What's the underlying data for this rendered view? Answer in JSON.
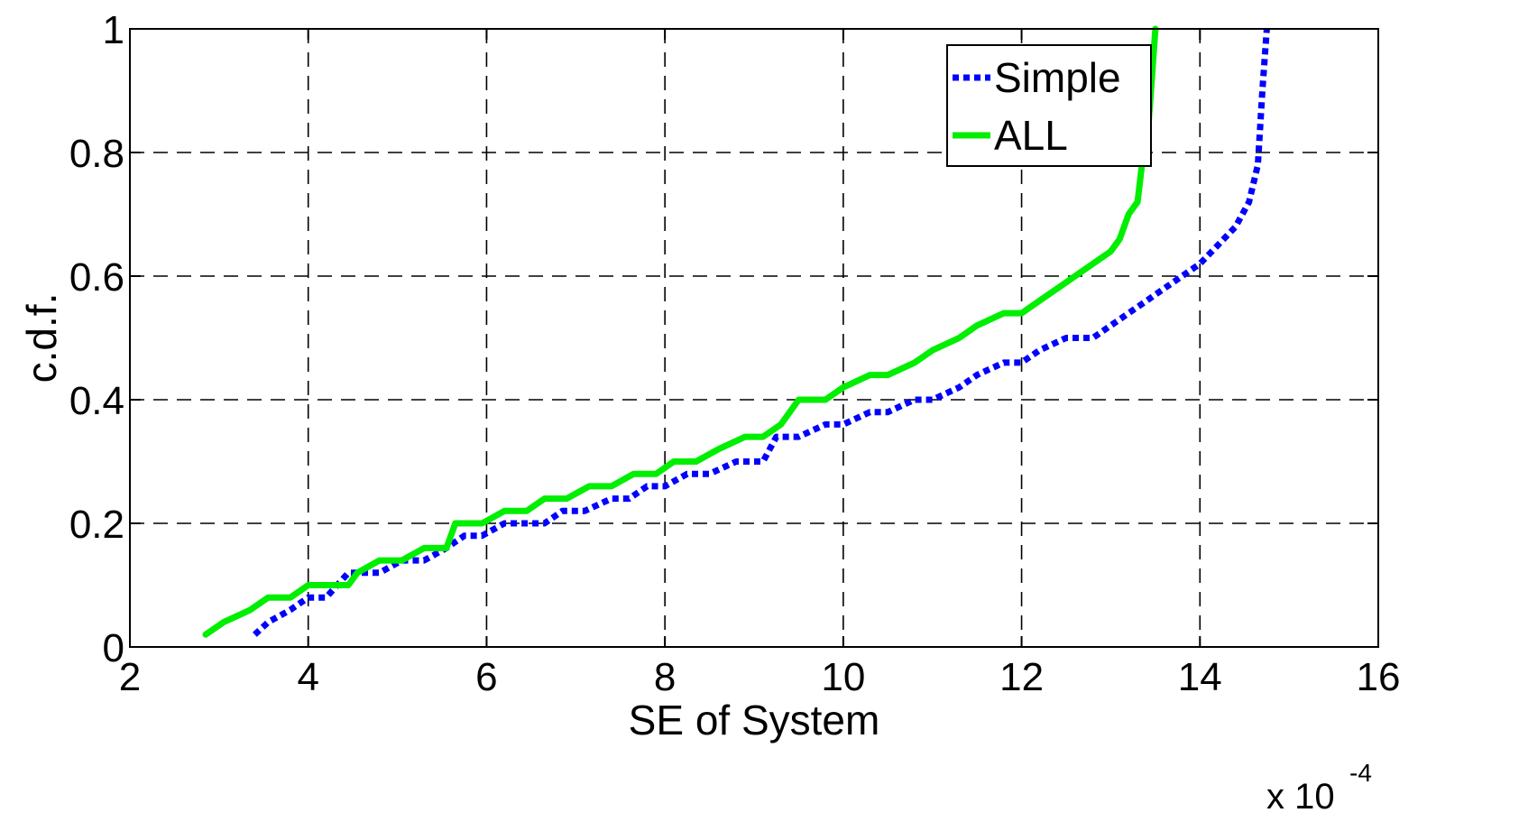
{
  "chart_data": {
    "type": "line",
    "xlabel": "SE of System",
    "ylabel": "c.d.f.",
    "x_scale_base": "x 10",
    "x_scale_exponent": "-4",
    "xlim": [
      2,
      16
    ],
    "ylim": [
      0,
      1
    ],
    "xticks": [
      "2",
      "4",
      "6",
      "8",
      "10",
      "12",
      "14",
      "16"
    ],
    "yticks": [
      "0",
      "0.2",
      "0.4",
      "0.6",
      "0.8",
      "1"
    ],
    "grid": true,
    "legend_position": "top-right",
    "series": [
      {
        "name": "Simple",
        "color": "#0000ff",
        "style": "dotted",
        "x": [
          3.4,
          3.55,
          3.8,
          4.0,
          4.2,
          4.45,
          4.55,
          4.8,
          5.05,
          5.3,
          5.55,
          5.75,
          5.95,
          6.2,
          6.4,
          6.65,
          6.85,
          7.1,
          7.4,
          7.6,
          7.8,
          8.0,
          8.25,
          8.5,
          8.8,
          9.1,
          9.25,
          9.5,
          9.8,
          10.0,
          10.3,
          10.5,
          10.8,
          11.0,
          11.3,
          11.5,
          11.8,
          12.0,
          12.2,
          12.5,
          12.8,
          13.0,
          13.2,
          13.4,
          13.6,
          13.8,
          14.0,
          14.2,
          14.4,
          14.55,
          14.65,
          14.7,
          14.75
        ],
        "y": [
          0.02,
          0.04,
          0.06,
          0.08,
          0.08,
          0.12,
          0.12,
          0.12,
          0.14,
          0.14,
          0.16,
          0.18,
          0.18,
          0.2,
          0.2,
          0.2,
          0.22,
          0.22,
          0.24,
          0.24,
          0.26,
          0.26,
          0.28,
          0.28,
          0.3,
          0.3,
          0.34,
          0.34,
          0.36,
          0.36,
          0.38,
          0.38,
          0.4,
          0.4,
          0.42,
          0.44,
          0.46,
          0.46,
          0.48,
          0.5,
          0.5,
          0.52,
          0.54,
          0.56,
          0.58,
          0.6,
          0.62,
          0.65,
          0.68,
          0.72,
          0.78,
          0.9,
          1.0
        ]
      },
      {
        "name": "ALL",
        "color": "#00ee00",
        "style": "solid",
        "x": [
          2.85,
          3.05,
          3.35,
          3.55,
          3.8,
          4.0,
          4.2,
          4.45,
          4.55,
          4.8,
          5.05,
          5.3,
          5.55,
          5.65,
          5.95,
          6.2,
          6.45,
          6.65,
          6.9,
          7.15,
          7.4,
          7.65,
          7.9,
          8.1,
          8.35,
          8.6,
          8.9,
          9.1,
          9.3,
          9.5,
          9.8,
          10.0,
          10.3,
          10.5,
          10.8,
          11.0,
          11.3,
          11.5,
          11.8,
          12.0,
          12.2,
          12.4,
          12.6,
          12.8,
          13.0,
          13.1,
          13.2,
          13.3,
          13.35,
          13.4,
          13.5
        ],
        "y": [
          0.02,
          0.04,
          0.06,
          0.08,
          0.08,
          0.1,
          0.1,
          0.1,
          0.12,
          0.14,
          0.14,
          0.16,
          0.16,
          0.2,
          0.2,
          0.22,
          0.22,
          0.24,
          0.24,
          0.26,
          0.26,
          0.28,
          0.28,
          0.3,
          0.3,
          0.32,
          0.34,
          0.34,
          0.36,
          0.4,
          0.4,
          0.42,
          0.44,
          0.44,
          0.46,
          0.48,
          0.5,
          0.52,
          0.54,
          0.54,
          0.56,
          0.58,
          0.6,
          0.62,
          0.64,
          0.66,
          0.7,
          0.72,
          0.78,
          0.8,
          1.0
        ]
      }
    ]
  }
}
